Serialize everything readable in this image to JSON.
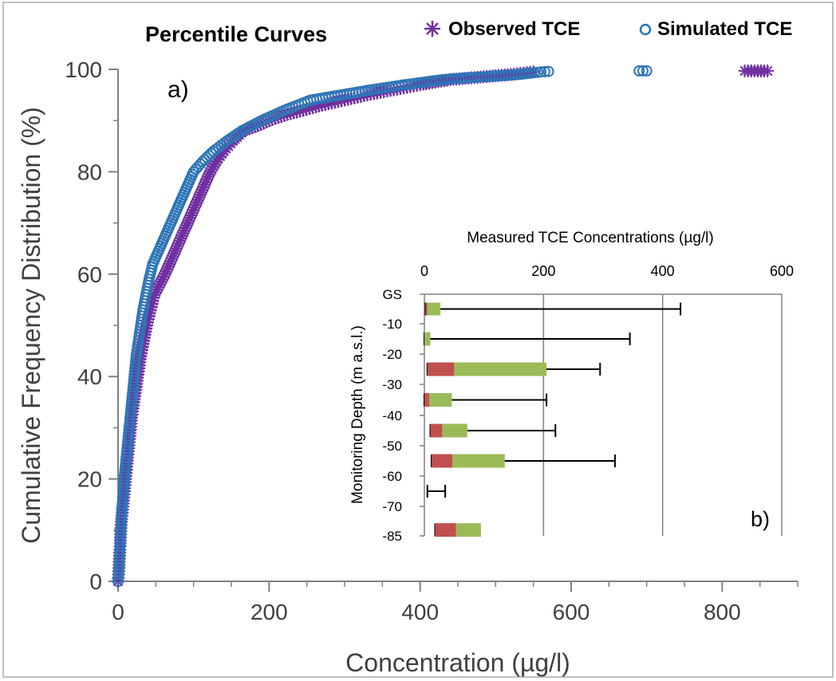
{
  "chart_data": [
    {
      "panel": "a)",
      "type": "scatter",
      "title": "Percentile Curves",
      "xlabel": "Concentration (µg/l)",
      "ylabel": "Cumulative Frequency Distribution (%)",
      "xlim": [
        0,
        900
      ],
      "ylim": [
        0,
        100
      ],
      "xticks": [
        "0",
        "200",
        "400",
        "600",
        "800"
      ],
      "yticks": [
        "0",
        "20",
        "40",
        "60",
        "80",
        "100"
      ],
      "grid": false,
      "legend": "top-right",
      "series": [
        {
          "name": "Observed TCE",
          "marker": "asterisk",
          "color": "#7030a0",
          "points": [
            [
              0,
              0
            ],
            [
              1,
              2
            ],
            [
              2,
              5
            ],
            [
              3,
              8
            ],
            [
              4,
              11
            ],
            [
              6,
              14
            ],
            [
              8,
              17
            ],
            [
              10,
              20
            ],
            [
              12,
              23
            ],
            [
              14,
              26
            ],
            [
              16,
              29
            ],
            [
              18,
              32
            ],
            [
              21,
              35
            ],
            [
              24,
              38
            ],
            [
              27,
              41
            ],
            [
              30,
              44
            ],
            [
              34,
              47
            ],
            [
              38,
              50
            ],
            [
              43,
              53
            ],
            [
              48,
              56
            ],
            [
              55,
              58
            ],
            [
              62,
              60
            ],
            [
              68,
              62
            ],
            [
              74,
              64
            ],
            [
              80,
              66
            ],
            [
              86,
              68
            ],
            [
              92,
              70
            ],
            [
              98,
              72
            ],
            [
              104,
              74
            ],
            [
              110,
              76
            ],
            [
              116,
              78
            ],
            [
              122,
              80
            ],
            [
              130,
              82
            ],
            [
              140,
              84
            ],
            [
              152,
              86
            ],
            [
              166,
              88
            ],
            [
              185,
              89
            ],
            [
              200,
              90
            ],
            [
              220,
              91
            ],
            [
              245,
              92
            ],
            [
              270,
              93
            ],
            [
              300,
              94
            ],
            [
              330,
              95
            ],
            [
              365,
              96
            ],
            [
              400,
              97
            ],
            [
              440,
              98
            ],
            [
              480,
              98.5
            ],
            [
              520,
              99
            ],
            [
              550,
              99.5
            ],
            [
              830,
              99.7
            ],
            [
              860,
              99.7
            ]
          ]
        },
        {
          "name": "Simulated TCE",
          "marker": "circle",
          "color": "#2e75b6",
          "points": [
            [
              0,
              0
            ],
            [
              1,
              2
            ],
            [
              2,
              5
            ],
            [
              3,
              8
            ],
            [
              4,
              11
            ],
            [
              5,
              14
            ],
            [
              7,
              17
            ],
            [
              8,
              20
            ],
            [
              10,
              23
            ],
            [
              12,
              26
            ],
            [
              14,
              29
            ],
            [
              16,
              32
            ],
            [
              18,
              35
            ],
            [
              20,
              38
            ],
            [
              22,
              41
            ],
            [
              24,
              44
            ],
            [
              27,
              47
            ],
            [
              30,
              50
            ],
            [
              33,
              53
            ],
            [
              37,
              56
            ],
            [
              41,
              59
            ],
            [
              46,
              62
            ],
            [
              52,
              64
            ],
            [
              58,
              66
            ],
            [
              64,
              68
            ],
            [
              70,
              70
            ],
            [
              76,
              72
            ],
            [
              82,
              74
            ],
            [
              88,
              76
            ],
            [
              94,
              78
            ],
            [
              100,
              80
            ],
            [
              112,
              82
            ],
            [
              126,
              84
            ],
            [
              144,
              86
            ],
            [
              164,
              88
            ],
            [
              190,
              90
            ],
            [
              220,
              92
            ],
            [
              255,
              94
            ],
            [
              295,
              95
            ],
            [
              335,
              96
            ],
            [
              380,
              97
            ],
            [
              430,
              98
            ],
            [
              480,
              98.5
            ],
            [
              530,
              99
            ],
            [
              560,
              99.5
            ],
            [
              570,
              99.6
            ],
            [
              690,
              99.7
            ],
            [
              700,
              99.7
            ]
          ]
        }
      ]
    },
    {
      "panel": "b)",
      "type": "bar",
      "orientation": "horizontal",
      "xlabel": "Measured TCE Concentrations (µg/l)",
      "ylabel": "Monitoring Depth (m a.s.l.)",
      "xlim": [
        0,
        600
      ],
      "xticks": [
        "0",
        "200",
        "400",
        "600"
      ],
      "yticks": [
        "GS",
        "-10",
        "-20",
        "-30",
        "-40",
        "-50",
        "-60",
        "-70",
        "-85"
      ],
      "grid": "vertical",
      "colors": {
        "lower": "#c0504d",
        "upper": "#9bbb59",
        "whisker": "#000000"
      },
      "categories": [
        "-5",
        "-15",
        "-25",
        "-35",
        "-45",
        "-55",
        "-65",
        "-82"
      ],
      "min": [
        2,
        0,
        5,
        0,
        10,
        12,
        5,
        18
      ],
      "lower": [
        3,
        0,
        45,
        8,
        20,
        35,
        0,
        35
      ],
      "upper": [
        22,
        10,
        155,
        38,
        42,
        88,
        0,
        42
      ],
      "max": [
        430,
        345,
        295,
        205,
        220,
        320,
        35,
        58
      ]
    }
  ]
}
